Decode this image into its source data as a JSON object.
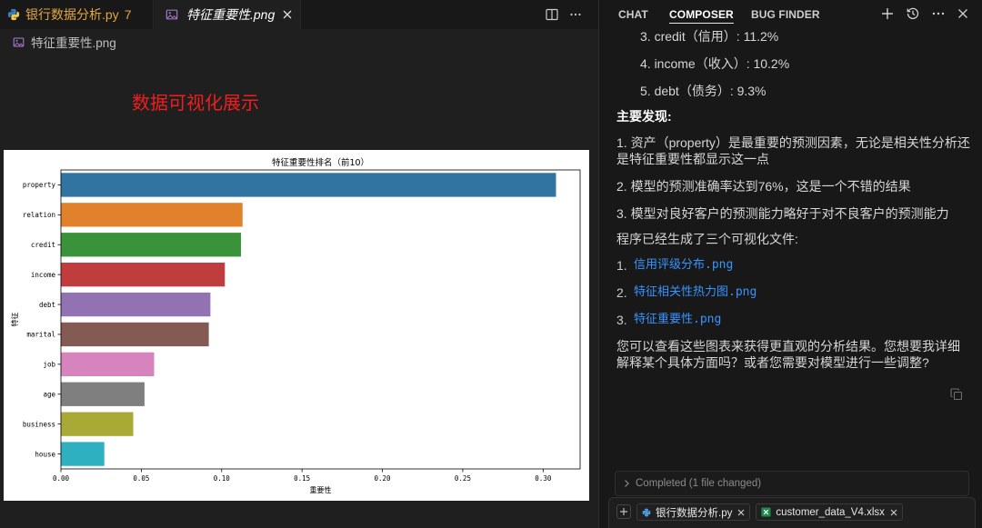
{
  "editor": {
    "tabs": [
      {
        "label": "银行数据分析.py",
        "badge": "7",
        "icon": "python-file-icon",
        "active": false,
        "text_color": "#e2a740"
      },
      {
        "label": "特征重要性.png",
        "icon": "image-file-icon",
        "active": true,
        "close_icon": "close-icon"
      }
    ],
    "toolbar_icons": [
      "split-editor-icon",
      "more-actions-icon"
    ],
    "breadcrumb": {
      "label": "特征重要性.png",
      "icon": "image-file-icon"
    },
    "preview": {
      "heading": "数据可视化展示",
      "heading_color": "#f01e1e"
    }
  },
  "chart_data": {
    "type": "bar",
    "orientation": "horizontal",
    "title": "特征重要性排名（前10）",
    "xlabel": "重要性",
    "ylabel": "特征",
    "categories": [
      "property",
      "relation",
      "credit",
      "income",
      "debt",
      "marital",
      "job",
      "age",
      "business",
      "house"
    ],
    "values": [
      0.308,
      0.113,
      0.112,
      0.102,
      0.093,
      0.092,
      0.058,
      0.052,
      0.045,
      0.027
    ],
    "colors": [
      "#3274a1",
      "#e1812c",
      "#3a923a",
      "#c03d3e",
      "#9372b2",
      "#845b53",
      "#d684bd",
      "#7f7f7f",
      "#a9aa35",
      "#2eb0c0"
    ],
    "xticks": [
      "0.00",
      "0.05",
      "0.10",
      "0.15",
      "0.20",
      "0.25",
      "0.30"
    ],
    "xlim": [
      0,
      0.323
    ],
    "grid": false,
    "show_legend": false
  },
  "composer": {
    "tabs": [
      {
        "label": "CHAT",
        "active": false
      },
      {
        "label": "COMPOSER",
        "active": true
      },
      {
        "label": "BUG FINDER",
        "active": false
      }
    ],
    "header_icons": [
      "plus-icon",
      "history-icon",
      "more-icon",
      "close-icon"
    ],
    "message": {
      "ranking_items": [
        "3. credit（信用）: 11.2%",
        "4. income（收入）: 10.2%",
        "5. debt（债务）: 9.3%"
      ],
      "findings_heading": "主要发现:",
      "findings": [
        "1. 资产（property）是最重要的预测因素，无论是相关性分析还是特征重要性都显示这一点",
        "2. 模型的预测准确率达到76%，这是一个不错的结果",
        "3. 模型对良好客户的预测能力略好于对不良客户的预测能力"
      ],
      "files_intro": "程序已经生成了三个可视化文件:",
      "files": [
        {
          "number": "1.",
          "name": "信用评级分布.png"
        },
        {
          "number": "2.",
          "name": "特征相关性热力图.png"
        },
        {
          "number": "3.",
          "name": "特征重要性.png"
        }
      ],
      "closing": "您可以查看这些图表来获得更直观的分析结果。您想要我详细解释某个具体方面吗？或者您需要对模型进行一些调整?",
      "copy_icon": "copy-icon"
    },
    "status": {
      "label": "Completed (1 file changed)",
      "icon": "chevron-right-icon"
    },
    "input": {
      "add_icon": "plus-icon",
      "context_chips": [
        {
          "label": "银行数据分析.py",
          "icon": "python-file-icon"
        },
        {
          "label": "customer_data_V4.xlsx",
          "icon": "excel-file-icon"
        }
      ]
    },
    "link_color": "#3794ff"
  }
}
